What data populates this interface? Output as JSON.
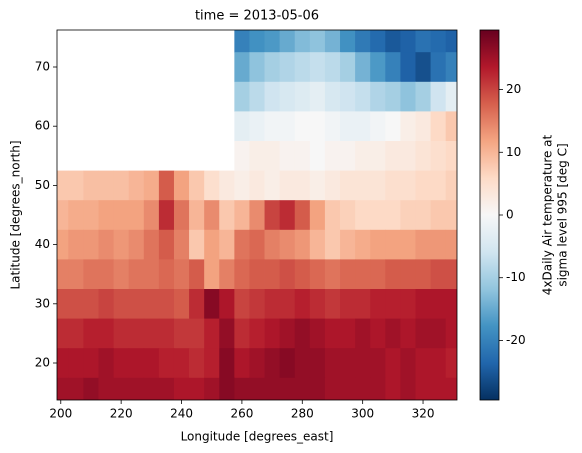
{
  "chart_data": {
    "type": "heatmap",
    "title": "time = 2013-05-06",
    "x_label": "Longitude [degrees_east]",
    "y_label": "Latitude [degrees_north]",
    "colorbar_label": [
      "4xDaily Air temperature at",
      "sigma level 995 [deg C]"
    ],
    "colormap": "RdBu_r",
    "x": [
      200,
      205,
      210,
      215,
      220,
      225,
      230,
      235,
      240,
      245,
      250,
      255,
      260,
      265,
      270,
      275,
      280,
      285,
      290,
      295,
      300,
      305,
      310,
      315,
      320,
      325,
      330
    ],
    "y": [
      75,
      70,
      65,
      60,
      55,
      50,
      45,
      40,
      35,
      30,
      25,
      20,
      15
    ],
    "values": [
      [
        null,
        null,
        null,
        null,
        null,
        null,
        null,
        null,
        null,
        null,
        null,
        null,
        -20,
        -18,
        -17,
        -15,
        -13,
        -12,
        -14,
        -18,
        -21,
        -23,
        -25,
        -24,
        -22,
        -23,
        -24
      ],
      [
        null,
        null,
        null,
        null,
        null,
        null,
        null,
        null,
        null,
        null,
        null,
        null,
        -15,
        -12,
        -10,
        -9,
        -8,
        -7,
        -8,
        -10,
        -14,
        -17,
        -20,
        -24,
        -26,
        -22,
        -20
      ],
      [
        null,
        null,
        null,
        null,
        null,
        null,
        null,
        null,
        null,
        null,
        null,
        null,
        -10,
        -8,
        -6,
        -5,
        -4,
        -3,
        -5,
        -6,
        -7,
        -9,
        -10,
        -12,
        -10,
        -6,
        -3
      ],
      [
        null,
        null,
        null,
        null,
        null,
        null,
        null,
        null,
        null,
        null,
        null,
        null,
        -3,
        -2,
        -1,
        -1,
        0,
        0,
        -1,
        -2,
        -2,
        -1,
        0,
        2,
        3,
        6,
        8
      ],
      [
        null,
        null,
        null,
        null,
        null,
        null,
        null,
        null,
        null,
        null,
        null,
        null,
        1,
        2,
        2,
        1,
        1,
        0,
        1,
        1,
        2,
        2,
        3,
        3,
        4,
        5,
        6
      ],
      [
        8,
        8,
        9,
        9,
        9,
        10,
        11,
        18,
        12,
        8,
        5,
        3,
        2,
        3,
        2,
        3,
        3,
        2,
        3,
        4,
        4,
        4,
        5,
        5,
        6,
        6,
        7
      ],
      [
        10,
        11,
        11,
        12,
        12,
        12,
        14,
        22,
        16,
        10,
        14,
        8,
        10,
        14,
        20,
        22,
        18,
        12,
        8,
        7,
        6,
        6,
        6,
        7,
        7,
        8,
        8
      ],
      [
        12,
        13,
        13,
        14,
        13,
        14,
        16,
        18,
        15,
        8,
        12,
        10,
        16,
        17,
        15,
        14,
        13,
        10,
        8,
        10,
        11,
        12,
        12,
        12,
        13,
        13,
        13
      ],
      [
        15,
        15,
        16,
        16,
        15,
        16,
        16,
        17,
        16,
        18,
        12,
        15,
        17,
        18,
        18,
        19,
        18,
        17,
        16,
        17,
        17,
        17,
        18,
        18,
        18,
        19,
        19
      ],
      [
        19,
        19,
        19,
        20,
        19,
        19,
        19,
        19,
        18,
        22,
        27,
        24,
        20,
        21,
        22,
        22,
        23,
        22,
        21,
        22,
        22,
        23,
        23,
        23,
        24,
        24,
        24
      ],
      [
        22,
        22,
        23,
        23,
        22,
        22,
        22,
        22,
        21,
        21,
        23,
        26,
        22,
        23,
        24,
        25,
        26,
        25,
        24,
        24,
        25,
        24,
        25,
        24,
        25,
        25,
        24
      ],
      [
        24,
        24,
        24,
        25,
        24,
        24,
        24,
        23,
        23,
        22,
        23,
        27,
        24,
        25,
        26,
        27,
        26,
        26,
        25,
        25,
        25,
        25,
        24,
        25,
        24,
        24,
        23
      ],
      [
        25,
        25,
        26,
        25,
        25,
        25,
        25,
        25,
        24,
        24,
        25,
        27,
        26,
        26,
        26,
        26,
        26,
        26,
        25,
        25,
        25,
        25,
        24,
        25,
        24,
        24,
        24
      ]
    ],
    "xlim": [
      198.75,
      331.25
    ],
    "ylim": [
      13.75,
      76.25
    ],
    "xticks": [
      200,
      220,
      240,
      260,
      280,
      300,
      320
    ],
    "yticks": [
      20,
      30,
      40,
      50,
      60,
      70
    ],
    "clim": [
      -29.5,
      29.5
    ],
    "cticks": [
      -20,
      -10,
      0,
      10,
      20
    ]
  }
}
